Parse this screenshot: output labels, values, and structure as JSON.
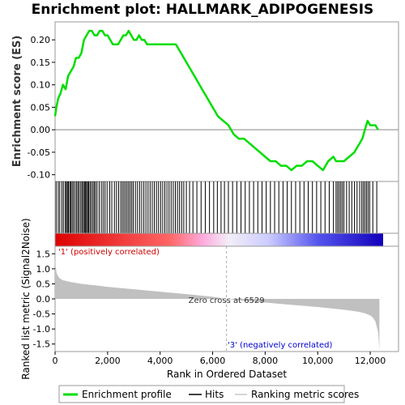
{
  "chart_data": {
    "type": "line",
    "title": "Enrichment plot: HALLMARK_ADIPOGENESIS",
    "n_genes": 12400,
    "zero_cross": 6529,
    "es_panel": {
      "ylabel": "Enrichment score (ES)",
      "ylim": [
        -0.115,
        0.24
      ],
      "yticks": [
        -0.1,
        -0.05,
        0.0,
        0.05,
        0.1,
        0.15,
        0.2
      ],
      "ytick_labels": [
        "-0.10",
        "-0.05",
        "0.00",
        "0.05",
        "0.10",
        "0.15",
        "0.20"
      ],
      "series": [
        {
          "name": "Enrichment profile",
          "color": "#00dd00",
          "x": [
            0,
            50,
            120,
            200,
            300,
            400,
            500,
            600,
            700,
            800,
            900,
            1000,
            1100,
            1200,
            1300,
            1400,
            1500,
            1600,
            1700,
            1800,
            1900,
            2000,
            2100,
            2200,
            2300,
            2400,
            2500,
            2600,
            2700,
            2800,
            2900,
            3000,
            3100,
            3200,
            3300,
            3400,
            3500,
            3600,
            3700,
            3800,
            3900,
            4000,
            4100,
            4200,
            4300,
            4400,
            4500,
            4600,
            4700,
            4800,
            5000,
            5200,
            5400,
            5600,
            5800,
            6000,
            6200,
            6400,
            6600,
            6800,
            7000,
            7200,
            7400,
            7600,
            7800,
            8000,
            8200,
            8400,
            8600,
            8800,
            9000,
            9200,
            9400,
            9600,
            9800,
            10000,
            10200,
            10400,
            10600,
            10700,
            10800,
            11000,
            11200,
            11400,
            11500,
            11600,
            11700,
            11800,
            11900,
            12000,
            12100,
            12200,
            12300
          ],
          "y": [
            0.03,
            0.05,
            0.07,
            0.08,
            0.1,
            0.09,
            0.12,
            0.13,
            0.14,
            0.16,
            0.16,
            0.17,
            0.2,
            0.21,
            0.22,
            0.22,
            0.21,
            0.21,
            0.22,
            0.22,
            0.21,
            0.21,
            0.2,
            0.19,
            0.19,
            0.19,
            0.2,
            0.21,
            0.21,
            0.22,
            0.21,
            0.2,
            0.2,
            0.21,
            0.2,
            0.2,
            0.19,
            0.19,
            0.19,
            0.19,
            0.19,
            0.19,
            0.19,
            0.19,
            0.19,
            0.19,
            0.19,
            0.19,
            0.18,
            0.17,
            0.15,
            0.13,
            0.11,
            0.09,
            0.07,
            0.05,
            0.03,
            0.02,
            0.01,
            -0.01,
            -0.02,
            -0.02,
            -0.03,
            -0.04,
            -0.05,
            -0.06,
            -0.07,
            -0.07,
            -0.08,
            -0.08,
            -0.09,
            -0.08,
            -0.08,
            -0.07,
            -0.07,
            -0.08,
            -0.09,
            -0.07,
            -0.06,
            -0.07,
            -0.07,
            -0.07,
            -0.06,
            -0.05,
            -0.04,
            -0.03,
            -0.02,
            0.0,
            0.02,
            0.01,
            0.01,
            0.01,
            0.0
          ]
        }
      ]
    },
    "hits_panel": {
      "legend_label": "Hits",
      "hit_positions": [
        40,
        120,
        180,
        260,
        320,
        390,
        430,
        470,
        510,
        560,
        600,
        650,
        700,
        760,
        820,
        870,
        920,
        980,
        1030,
        1080,
        1120,
        1160,
        1200,
        1240,
        1280,
        1330,
        1380,
        1440,
        1490,
        1540,
        1600,
        1680,
        1760,
        1830,
        1900,
        1980,
        2080,
        2160,
        2260,
        2340,
        2420,
        2500,
        2560,
        2620,
        2680,
        2740,
        2800,
        2860,
        2920,
        2980,
        3060,
        3140,
        3220,
        3300,
        3380,
        3460,
        3540,
        3620,
        3700,
        3780,
        3860,
        3940,
        4020,
        4100,
        4180,
        4260,
        4340,
        4420,
        4500,
        4580,
        4660,
        4740,
        4820,
        4900,
        5000,
        5120,
        5250,
        5400,
        5560,
        5720,
        5880,
        6040,
        6180,
        6320,
        6450,
        6600,
        6760,
        6920,
        7080,
        7240,
        7400,
        7560,
        7720,
        7880,
        8040,
        8200,
        8360,
        8520,
        8680,
        8840,
        9000,
        9160,
        9320,
        9480,
        9640,
        9800,
        9960,
        10120,
        10280,
        10440,
        10600,
        10700,
        10760,
        10820,
        10880,
        10940,
        11000,
        11100,
        11200,
        11300,
        11400,
        11500,
        11600,
        11680,
        11740,
        11800,
        11860,
        11920,
        11980,
        12100,
        12250
      ]
    },
    "ranked_panel": {
      "ylabel": "Ranked list metric (Signal2Noise)",
      "xlabel": "Rank in Ordered Dataset",
      "ylim": [
        -1.75,
        1.75
      ],
      "yticks": [
        -1.5,
        -1.0,
        -0.5,
        0.0,
        0.5,
        1.0,
        1.5
      ],
      "ytick_labels": [
        "-1.5",
        "-1.0",
        "-0.5",
        "0.0",
        "0.5",
        "1.0",
        "1.5"
      ],
      "xticks": [
        0,
        2000,
        4000,
        6000,
        8000,
        10000,
        12000
      ],
      "xtick_labels": [
        "0",
        "2,000",
        "4,000",
        "6,000",
        "8,000",
        "10,000",
        "12,000"
      ],
      "legend_label": "Ranking metric scores",
      "x": [
        0,
        20,
        60,
        150,
        300,
        600,
        1000,
        2000,
        3000,
        4000,
        5000,
        6000,
        6529,
        7000,
        8000,
        9000,
        10000,
        11000,
        11500,
        11800,
        12000,
        12100,
        12200,
        12300,
        12350
      ],
      "y": [
        1.6,
        1.1,
        0.85,
        0.7,
        0.62,
        0.56,
        0.5,
        0.4,
        0.32,
        0.24,
        0.16,
        0.07,
        0.0,
        -0.05,
        -0.12,
        -0.2,
        -0.27,
        -0.36,
        -0.42,
        -0.48,
        -0.55,
        -0.62,
        -0.75,
        -1.1,
        -1.7
      ]
    },
    "annotations": {
      "positive": "'1' (positively correlated)",
      "negative": "'3' (negatively correlated)",
      "zero_cross": "Zero cross at 6529"
    }
  }
}
